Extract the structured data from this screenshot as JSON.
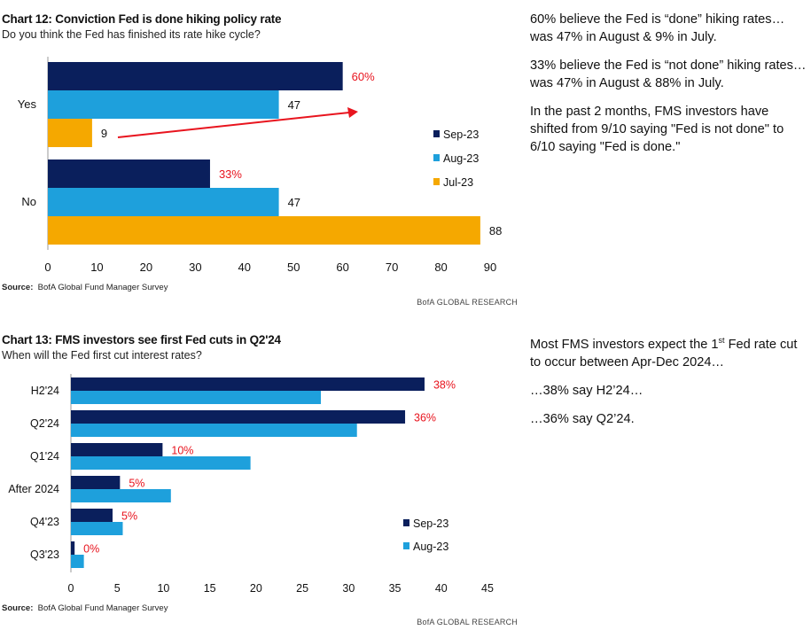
{
  "chart_data": [
    {
      "type": "bar",
      "orientation": "horizontal",
      "title": "Chart 12: Conviction Fed is done hiking policy rate",
      "subtitle": "Do you think the Fed has finished its rate hike cycle?",
      "categories": [
        "Yes",
        "No"
      ],
      "series": [
        {
          "name": "Sep-23",
          "color": "#0a1f5c",
          "values": [
            60,
            33
          ],
          "labels": [
            "60%",
            "33%"
          ]
        },
        {
          "name": "Aug-23",
          "color": "#1ea0dc",
          "values": [
            47,
            47
          ],
          "labels": [
            "47",
            "47"
          ]
        },
        {
          "name": "Jul-23",
          "color": "#f5a800",
          "values": [
            9,
            88
          ],
          "labels": [
            "9",
            "88"
          ]
        }
      ],
      "xlim": [
        0,
        90
      ],
      "xticks": [
        0,
        10,
        20,
        30,
        40,
        50,
        60,
        70,
        80,
        90
      ],
      "legend": "right",
      "source_label": "Source:",
      "source": "BofA Global Fund Manager Survey",
      "brand": "BofA GLOBAL RESEARCH"
    },
    {
      "type": "bar",
      "orientation": "horizontal",
      "title": "Chart 13: FMS investors see first Fed cuts in Q2'24",
      "subtitle": "When will the Fed first cut interest rates?",
      "categories": [
        "H2'24",
        "Q2'24",
        "Q1'24",
        "After 2024",
        "Q4'23",
        "Q3'23"
      ],
      "series": [
        {
          "name": "Sep-23",
          "color": "#0a1f5c",
          "values": [
            38.2,
            36.1,
            9.9,
            5.3,
            4.5,
            0.4
          ],
          "labels": [
            "38%",
            "36%",
            "10%",
            "5%",
            "5%",
            "0%"
          ]
        },
        {
          "name": "Aug-23",
          "color": "#1ea0dc",
          "values": [
            27,
            30.9,
            19.4,
            10.8,
            5.6,
            1.4
          ]
        }
      ],
      "xlim": [
        0,
        45
      ],
      "xticks": [
        0,
        5,
        10,
        15,
        20,
        25,
        30,
        35,
        40,
        45
      ],
      "legend": "bottom-right",
      "source_label": "Source:",
      "source": "BofA Global Fund Manager Survey",
      "brand": "BofA GLOBAL RESEARCH"
    }
  ],
  "notes12": [
    "60% believe the Fed is “done” hiking rates…was 47% in August & 9% in July.",
    "33% believe the Fed is “not done” hiking rates…was 47% in August & 88% in July.",
    "In the past 2 months, FMS investors have shifted from 9/10 saying \"Fed is not done\" to 6/10 saying \"Fed is done.\""
  ],
  "notes13": {
    "line1_pre": "Most FMS investors expect the 1",
    "line1_sup": "st",
    "line1_post": " Fed rate cut to occur between Apr-Dec 2024…",
    "line2": "…38% say H2’24…",
    "line3": "…36% say Q2’24."
  },
  "colors": {
    "label_red": "#e8141e",
    "arrow_red": "#e8141e"
  }
}
